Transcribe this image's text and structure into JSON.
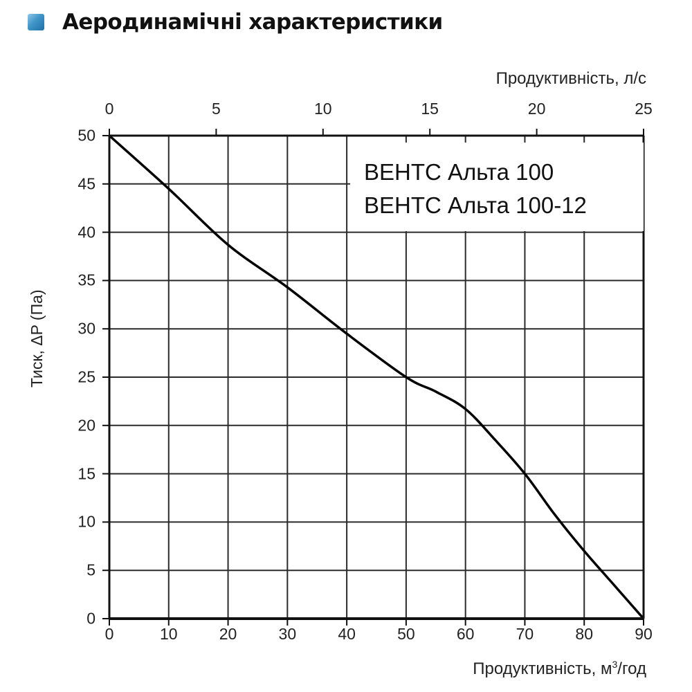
{
  "header": {
    "icon": "blue-square-icon",
    "title": "Аеродинамічні характеристики"
  },
  "chart_data": {
    "type": "line",
    "title": "Аеродинамічні характеристики",
    "xlabel": "Продуктивність, м³/год",
    "xlabel_top": "Продуктивність, л/с",
    "ylabel": "Тиск, ΔP (Па)",
    "xlim": [
      0,
      90
    ],
    "xlim_top": [
      0,
      25
    ],
    "ylim": [
      0,
      50
    ],
    "x_ticks": [
      0,
      10,
      20,
      30,
      40,
      50,
      60,
      70,
      80,
      90
    ],
    "x_top_ticks": [
      0,
      5,
      10,
      15,
      20,
      25
    ],
    "y_ticks": [
      0,
      5,
      10,
      15,
      20,
      25,
      30,
      35,
      40,
      45,
      50
    ],
    "grid": true,
    "legend": [
      "ВЕНТС Альта 100",
      "ВЕНТС Альта 100-12"
    ],
    "legend_position": "upper right",
    "series": [
      {
        "name": "ВЕНТС Альта 100 / ВЕНТС Альта 100-12",
        "x": [
          0,
          10,
          20,
          30,
          40,
          50,
          55,
          60,
          65,
          70,
          75,
          80,
          85,
          90
        ],
        "values": [
          50,
          44.5,
          38.7,
          34.3,
          29.5,
          25,
          23.5,
          21.7,
          18.5,
          15,
          10.8,
          7,
          3.5,
          0
        ]
      }
    ]
  },
  "axes": {
    "top_label_text": "Продуктивність, л/с",
    "bottom_label_main": "Продуктивність, м",
    "bottom_label_sup": "3",
    "bottom_label_tail": "/год",
    "y_label_text": "Тиск, ΔP (Па)"
  }
}
